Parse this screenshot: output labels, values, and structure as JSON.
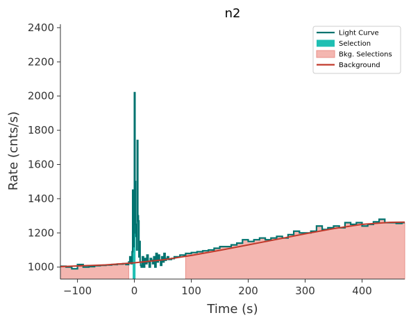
{
  "chart_data": {
    "type": "line",
    "title": "n2",
    "xlabel": "Time (s)",
    "ylabel": "Rate (cnts/s)",
    "xlim": [
      -130,
      475
    ],
    "ylim": [
      930,
      2420
    ],
    "xticks": [
      -100,
      0,
      100,
      200,
      300,
      400
    ],
    "yticks": [
      1000,
      1200,
      1400,
      1600,
      1800,
      2000,
      2200,
      2400
    ],
    "legend_position": "top-right",
    "legend": [
      {
        "label": "Light Curve",
        "kind": "line",
        "color": "#00736f"
      },
      {
        "label": "Selection",
        "kind": "patch",
        "color": "#1fbfb3"
      },
      {
        "label": "Bkg. Selections",
        "kind": "patch",
        "color": "#f4b6b0"
      },
      {
        "label": "Background",
        "kind": "line",
        "color": "#c0392b"
      }
    ],
    "colors": {
      "light_curve": "#00736f",
      "selection": "#1fbfb3",
      "bkg_selection": "#f4b6b0",
      "bkg_selection_edge": "#e9908a",
      "background": "#c0392b"
    },
    "selection_range": [
      -3,
      2
    ],
    "bkg_selection_ranges": [
      [
        -130,
        -10
      ],
      [
        90,
        475
      ]
    ],
    "background_line": {
      "x": [
        -130,
        -50,
        0,
        50,
        100,
        150,
        200,
        250,
        300,
        350,
        400,
        450,
        475
      ],
      "y": [
        1003,
        1013,
        1025,
        1042,
        1068,
        1098,
        1130,
        1162,
        1195,
        1225,
        1250,
        1262,
        1263
      ]
    },
    "light_curve": {
      "x": [
        -130,
        -120,
        -110,
        -100,
        -90,
        -80,
        -70,
        -60,
        -50,
        -40,
        -30,
        -20,
        -15,
        -10,
        -8,
        -6,
        -4,
        -3,
        -2,
        -1,
        0,
        1,
        2,
        3,
        4,
        5,
        6,
        7,
        8,
        9,
        10,
        11,
        12,
        14,
        16,
        18,
        20,
        22,
        24,
        26,
        28,
        30,
        32,
        34,
        36,
        38,
        40,
        42,
        44,
        46,
        48,
        50,
        52,
        54,
        56,
        58,
        60,
        65,
        70,
        80,
        90,
        100,
        110,
        120,
        130,
        140,
        150,
        160,
        170,
        180,
        190,
        200,
        210,
        220,
        230,
        240,
        250,
        260,
        270,
        280,
        290,
        300,
        310,
        320,
        330,
        340,
        350,
        360,
        370,
        380,
        390,
        400,
        410,
        420,
        430,
        440,
        450,
        460,
        470
      ],
      "y": [
        1005,
        1000,
        990,
        1015,
        1000,
        1003,
        1008,
        1010,
        1012,
        1015,
        1018,
        1020,
        1015,
        1030,
        1060,
        1020,
        1090,
        1450,
        1120,
        1200,
        2020,
        1500,
        1250,
        1180,
        1100,
        1740,
        1300,
        1270,
        1060,
        1150,
        1030,
        1010,
        1000,
        1060,
        1000,
        1050,
        1020,
        1070,
        1030,
        1000,
        1050,
        1040,
        1020,
        1060,
        1000,
        1080,
        1030,
        1070,
        1040,
        1010,
        1060,
        1030,
        1080,
        1040,
        1050,
        1060,
        1045,
        1050,
        1060,
        1070,
        1080,
        1085,
        1090,
        1095,
        1100,
        1110,
        1120,
        1120,
        1130,
        1140,
        1160,
        1150,
        1160,
        1170,
        1160,
        1170,
        1180,
        1170,
        1190,
        1210,
        1200,
        1200,
        1210,
        1240,
        1220,
        1230,
        1240,
        1230,
        1260,
        1250,
        1260,
        1240,
        1250,
        1265,
        1280,
        1260,
        1260,
        1255,
        1260
      ]
    }
  }
}
